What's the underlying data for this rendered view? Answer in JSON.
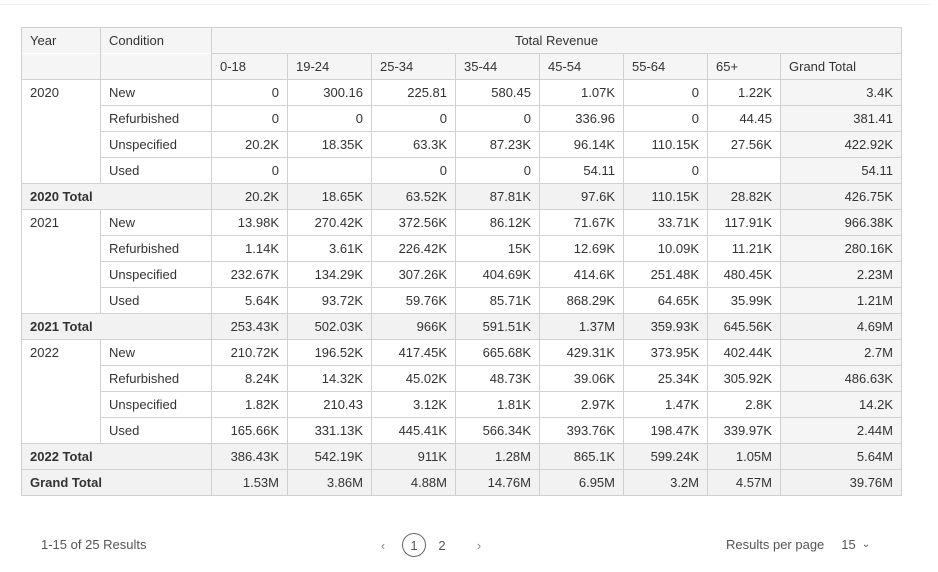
{
  "header": {
    "year": "Year",
    "condition": "Condition",
    "total_revenue": "Total Revenue",
    "age_groups": [
      "0-18",
      "19-24",
      "25-34",
      "35-44",
      "45-54",
      "55-64",
      "65+"
    ],
    "grand_total": "Grand Total"
  },
  "rows": [
    {
      "year": "2020",
      "condition": "New",
      "values": [
        "0",
        "300.16",
        "225.81",
        "580.45",
        "1.07K",
        "0",
        "1.22K"
      ],
      "grand_total": "3.4K"
    },
    {
      "year": "",
      "condition": "Refurbished",
      "values": [
        "0",
        "0",
        "0",
        "0",
        "336.96",
        "0",
        "44.45"
      ],
      "grand_total": "381.41"
    },
    {
      "year": "",
      "condition": "Unspecified",
      "values": [
        "20.2K",
        "18.35K",
        "63.3K",
        "87.23K",
        "96.14K",
        "110.15K",
        "27.56K"
      ],
      "grand_total": "422.92K"
    },
    {
      "year": "",
      "condition": "Used",
      "values": [
        "0",
        "",
        "0",
        "0",
        "54.11",
        "0",
        ""
      ],
      "grand_total": "54.11"
    },
    {
      "total": true,
      "year": "2020 Total",
      "condition": "",
      "values": [
        "20.2K",
        "18.65K",
        "63.52K",
        "87.81K",
        "97.6K",
        "110.15K",
        "28.82K"
      ],
      "grand_total": "426.75K"
    },
    {
      "year": "2021",
      "condition": "New",
      "values": [
        "13.98K",
        "270.42K",
        "372.56K",
        "86.12K",
        "71.67K",
        "33.71K",
        "117.91K"
      ],
      "grand_total": "966.38K"
    },
    {
      "year": "",
      "condition": "Refurbished",
      "values": [
        "1.14K",
        "3.61K",
        "226.42K",
        "15K",
        "12.69K",
        "10.09K",
        "11.21K"
      ],
      "grand_total": "280.16K"
    },
    {
      "year": "",
      "condition": "Unspecified",
      "values": [
        "232.67K",
        "134.29K",
        "307.26K",
        "404.69K",
        "414.6K",
        "251.48K",
        "480.45K"
      ],
      "grand_total": "2.23M"
    },
    {
      "year": "",
      "condition": "Used",
      "values": [
        "5.64K",
        "93.72K",
        "59.76K",
        "85.71K",
        "868.29K",
        "64.65K",
        "35.99K"
      ],
      "grand_total": "1.21M"
    },
    {
      "total": true,
      "year": "2021 Total",
      "condition": "",
      "values": [
        "253.43K",
        "502.03K",
        "966K",
        "591.51K",
        "1.37M",
        "359.93K",
        "645.56K"
      ],
      "grand_total": "4.69M"
    },
    {
      "year": "2022",
      "condition": "New",
      "values": [
        "210.72K",
        "196.52K",
        "417.45K",
        "665.68K",
        "429.31K",
        "373.95K",
        "402.44K"
      ],
      "grand_total": "2.7M"
    },
    {
      "year": "",
      "condition": "Refurbished",
      "values": [
        "8.24K",
        "14.32K",
        "45.02K",
        "48.73K",
        "39.06K",
        "25.34K",
        "305.92K"
      ],
      "grand_total": "486.63K"
    },
    {
      "year": "",
      "condition": "Unspecified",
      "values": [
        "1.82K",
        "210.43",
        "3.12K",
        "1.81K",
        "2.97K",
        "1.47K",
        "2.8K"
      ],
      "grand_total": "14.2K"
    },
    {
      "year": "",
      "condition": "Used",
      "values": [
        "165.66K",
        "331.13K",
        "445.41K",
        "566.34K",
        "393.76K",
        "198.47K",
        "339.97K"
      ],
      "grand_total": "2.44M"
    },
    {
      "total": true,
      "year": "2022 Total",
      "condition": "",
      "values": [
        "386.43K",
        "542.19K",
        "911K",
        "1.28M",
        "865.1K",
        "599.24K",
        "1.05M"
      ],
      "grand_total": "5.64M"
    },
    {
      "total": true,
      "year": "Grand Total",
      "condition": "",
      "values": [
        "1.53M",
        "3.86M",
        "4.88M",
        "14.76M",
        "6.95M",
        "3.2M",
        "4.57M"
      ],
      "grand_total": "39.76M"
    }
  ],
  "footer": {
    "results": "1-15 of 25 Results",
    "prev_icon": "chevron-left-icon",
    "next_icon": "chevron-right-icon",
    "pages": [
      "1",
      "2"
    ],
    "current_page": "1",
    "results_per_page_label": "Results per page",
    "results_per_page_value": "15",
    "dropdown_icon": "chevron-down-icon"
  }
}
